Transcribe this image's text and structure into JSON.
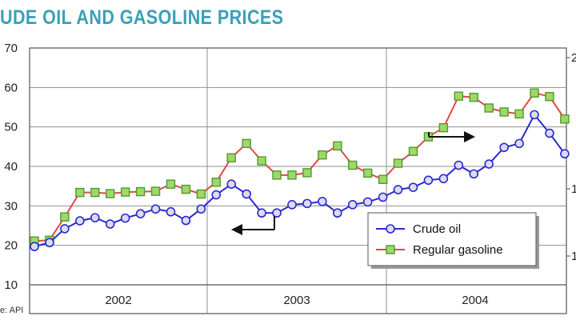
{
  "title": "UDE OIL AND GASOLINE PRICES",
  "source": "e: API",
  "chart_data": {
    "type": "line",
    "ylim": [
      10,
      70
    ],
    "yticks": [
      "70",
      "60",
      "50",
      "40",
      "30",
      "20",
      "10"
    ],
    "right_ticks": [
      "2",
      "1",
      "1"
    ],
    "xtick_labels": [
      "2002",
      "2003",
      "2004"
    ],
    "grid": true,
    "legend_position": "lower-right",
    "series": [
      {
        "name": "Crude oil",
        "color": "#2a2ad0",
        "marker": "circle",
        "values": [
          19.7,
          20.7,
          24.2,
          26.2,
          27.0,
          25.4,
          26.9,
          28.0,
          29.2,
          28.5,
          26.3,
          29.2,
          32.8,
          35.5,
          33.0,
          28.2,
          28.2,
          30.3,
          30.6,
          31.1,
          28.2,
          30.3,
          31.0,
          32.2,
          34.1,
          34.7,
          36.5,
          36.9,
          40.3,
          38.1,
          40.6,
          44.8,
          45.8,
          53.1,
          48.4,
          43.2
        ]
      },
      {
        "name": "Regular gasoline",
        "color": "#e04848",
        "marker": "square",
        "values": [
          21.1,
          21.3,
          27.2,
          33.4,
          33.4,
          33.1,
          33.5,
          33.6,
          33.7,
          35.5,
          34.2,
          33.0,
          36.0,
          42.2,
          45.8,
          41.4,
          37.8,
          37.8,
          38.4,
          42.9,
          45.2,
          40.3,
          38.3,
          36.7,
          40.8,
          43.8,
          47.5,
          49.8,
          57.8,
          57.5,
          54.8,
          53.8,
          53.3,
          58.6,
          57.7,
          52.0
        ]
      }
    ],
    "annotations": [
      {
        "type": "arrow",
        "direction": "right",
        "near_series": "Regular gasoline"
      },
      {
        "type": "arrow",
        "direction": "left",
        "near_series": "Crude oil"
      }
    ]
  }
}
